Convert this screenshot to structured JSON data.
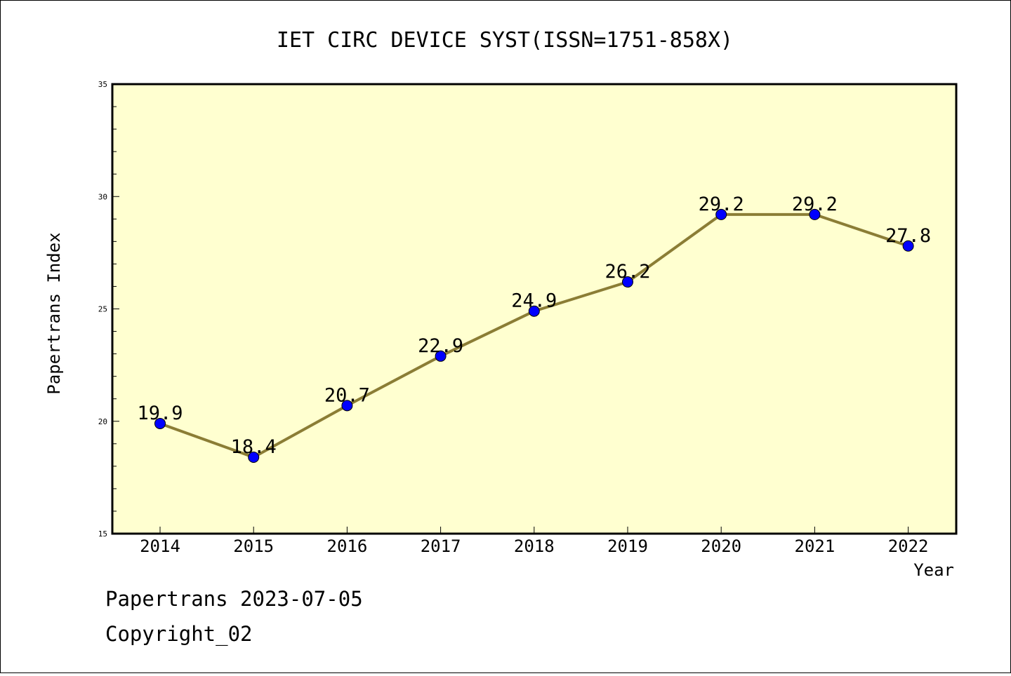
{
  "chart_data": {
    "type": "line",
    "title": "IET CIRC DEVICE SYST(ISSN=1751-858X)",
    "xlabel": "Year",
    "ylabel": "Papertrans Index",
    "ylim": [
      15,
      35
    ],
    "yticks": [
      15,
      20,
      25,
      30,
      35
    ],
    "categories": [
      "2014",
      "2015",
      "2016",
      "2017",
      "2018",
      "2019",
      "2020",
      "2021",
      "2022"
    ],
    "series": [
      {
        "values": [
          19.9,
          18.4,
          20.7,
          22.9,
          24.9,
          26.2,
          29.2,
          29.2,
          27.8
        ],
        "labels": [
          "19.9",
          "18.4",
          "20.7",
          "22.9",
          "24.9",
          "26.2",
          "29.2",
          "29.2",
          "27.8"
        ]
      }
    ],
    "colors": {
      "plot_background": "#ffffd0",
      "line": "#8b7d35",
      "marker": "#0000ff"
    },
    "grid": false
  },
  "footer": {
    "line1": "Papertrans 2023-07-05",
    "line2": "Copyright_02"
  }
}
